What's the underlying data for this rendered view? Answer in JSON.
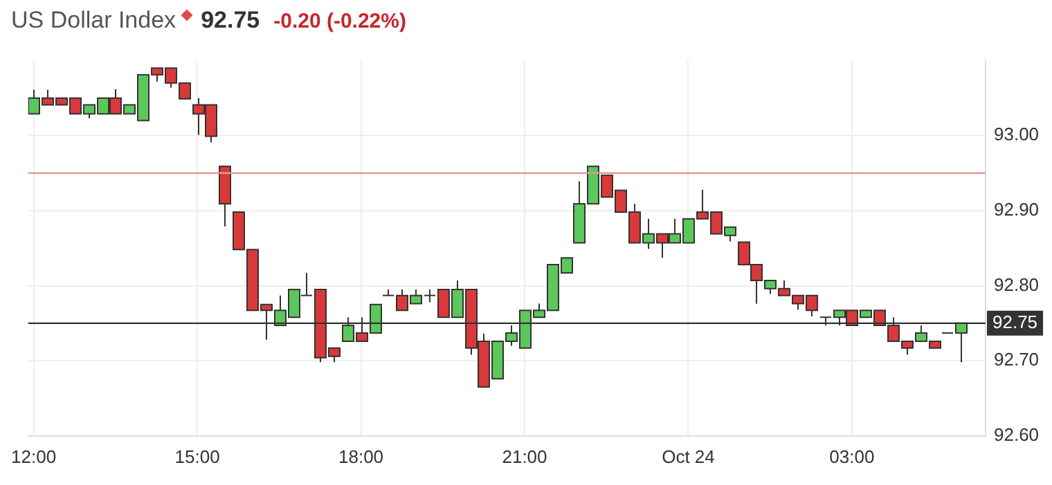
{
  "chart_data": {
    "type": "candlestick",
    "title": "US Dollar Index",
    "annotations": [
      "92.75",
      "-0.20 (-0.22%)"
    ],
    "x": [
      "--10-23T12:00",
      "--10-23T12:15",
      "--10-23T12:30",
      "--10-23T12:45",
      "--10-23T13:00",
      "--10-23T13:15",
      "--10-23T13:30",
      "--10-23T13:45",
      "--10-23T14:00",
      "--10-23T14:15",
      "--10-23T14:30",
      "--10-23T14:45",
      "--10-23T15:00",
      "--10-23T15:15",
      "--10-23T15:30",
      "--10-23T15:45",
      "--10-23T16:00",
      "--10-23T16:15",
      "--10-23T16:30",
      "--10-23T16:45",
      "--10-23T17:00",
      "--10-23T17:15",
      "--10-23T17:30",
      "--10-23T17:45",
      "--10-23T18:00",
      "--10-23T18:15",
      "--10-23T18:30",
      "--10-23T18:45",
      "--10-23T19:00",
      "--10-23T19:15",
      "--10-23T19:30",
      "--10-23T19:45",
      "--10-23T20:00",
      "--10-23T20:15",
      "--10-23T20:30",
      "--10-23T20:45",
      "--10-23T21:00",
      "--10-23T21:15",
      "--10-23T21:30",
      "--10-23T21:45",
      "--10-23T22:00",
      "--10-23T22:15",
      "--10-23T22:30",
      "--10-23T22:45",
      "--10-23T23:00",
      "--10-23T23:15",
      "--10-23T23:30",
      "--10-23T23:45",
      "--10-24T00:00",
      "--10-24T00:15",
      "--10-24T00:30",
      "--10-24T00:45",
      "--10-24T01:00",
      "--10-24T01:15",
      "--10-24T01:30",
      "--10-24T01:45",
      "--10-24T02:00",
      "--10-24T02:15",
      "--10-24T02:30",
      "--10-24T02:45",
      "--10-24T03:00",
      "--10-24T03:15",
      "--10-24T03:30",
      "--10-24T03:45",
      "--10-24T04:00",
      "--10-24T04:15",
      "--10-24T04:30",
      "--10-24T04:45",
      "--10-24T05:00"
    ],
    "ohlc": [
      [
        93.029,
        93.061,
        93.029,
        93.05
      ],
      [
        93.05,
        93.061,
        93.041,
        93.041
      ],
      [
        93.05,
        93.05,
        93.041,
        93.041
      ],
      [
        93.05,
        93.05,
        93.029,
        93.029
      ],
      [
        93.029,
        93.041,
        93.023,
        93.041
      ],
      [
        93.029,
        93.05,
        93.029,
        93.05
      ],
      [
        93.05,
        93.062,
        93.029,
        93.029
      ],
      [
        93.029,
        93.041,
        93.029,
        93.041
      ],
      [
        93.02,
        93.081,
        93.02,
        93.081
      ],
      [
        93.09,
        93.09,
        93.072,
        93.081
      ],
      [
        93.09,
        93.09,
        93.064,
        93.07
      ],
      [
        93.07,
        93.07,
        93.049,
        93.049
      ],
      [
        93.041,
        93.05,
        93.001,
        93.029
      ],
      [
        93.041,
        93.041,
        92.991,
        92.999
      ],
      [
        92.959,
        92.959,
        92.879,
        92.909
      ],
      [
        92.898,
        92.898,
        92.848,
        92.848
      ],
      [
        92.848,
        92.848,
        92.767,
        92.767
      ],
      [
        92.775,
        92.775,
        92.728,
        92.767
      ],
      [
        92.747,
        92.787,
        92.747,
        92.767
      ],
      [
        92.758,
        92.795,
        92.758,
        92.795
      ],
      [
        92.787,
        92.817,
        92.787,
        92.787
      ],
      [
        92.795,
        92.795,
        92.698,
        92.704
      ],
      [
        92.717,
        92.717,
        92.698,
        92.706
      ],
      [
        92.726,
        92.758,
        92.726,
        92.747
      ],
      [
        92.737,
        92.758,
        92.726,
        92.726
      ],
      [
        92.737,
        92.775,
        92.737,
        92.775
      ],
      [
        92.787,
        92.795,
        92.787,
        92.787
      ],
      [
        92.787,
        92.795,
        92.767,
        92.767
      ],
      [
        92.776,
        92.795,
        92.776,
        92.787
      ],
      [
        92.787,
        92.795,
        92.778,
        92.787
      ],
      [
        92.795,
        92.795,
        92.758,
        92.758
      ],
      [
        92.758,
        92.807,
        92.758,
        92.795
      ],
      [
        92.795,
        92.795,
        92.708,
        92.717
      ],
      [
        92.726,
        92.736,
        92.665,
        92.665
      ],
      [
        92.676,
        92.726,
        92.676,
        92.726
      ],
      [
        92.726,
        92.747,
        92.72,
        92.737
      ],
      [
        92.717,
        92.767,
        92.717,
        92.767
      ],
      [
        92.758,
        92.776,
        92.758,
        92.767
      ],
      [
        92.767,
        92.828,
        92.767,
        92.828
      ],
      [
        92.817,
        92.837,
        92.817,
        92.837
      ],
      [
        92.857,
        92.939,
        92.857,
        92.909
      ],
      [
        92.909,
        92.959,
        92.909,
        92.959
      ],
      [
        92.947,
        92.947,
        92.918,
        92.918
      ],
      [
        92.927,
        92.927,
        92.898,
        92.898
      ],
      [
        92.898,
        92.909,
        92.857,
        92.857
      ],
      [
        92.857,
        92.889,
        92.849,
        92.869
      ],
      [
        92.869,
        92.869,
        92.837,
        92.857
      ],
      [
        92.857,
        92.889,
        92.857,
        92.869
      ],
      [
        92.857,
        92.889,
        92.857,
        92.889
      ],
      [
        92.898,
        92.928,
        92.889,
        92.889
      ],
      [
        92.898,
        92.898,
        92.869,
        92.869
      ],
      [
        92.867,
        92.878,
        92.859,
        92.878
      ],
      [
        92.858,
        92.858,
        92.828,
        92.828
      ],
      [
        92.828,
        92.828,
        92.776,
        92.807
      ],
      [
        92.796,
        92.807,
        92.789,
        92.807
      ],
      [
        92.796,
        92.807,
        92.787,
        92.787
      ],
      [
        92.787,
        92.787,
        92.768,
        92.776
      ],
      [
        92.787,
        92.787,
        92.759,
        92.767
      ],
      [
        92.758,
        92.758,
        92.747,
        92.758
      ],
      [
        92.758,
        92.767,
        92.747,
        92.767
      ],
      [
        92.767,
        92.767,
        92.747,
        92.747
      ],
      [
        92.758,
        92.767,
        92.758,
        92.767
      ],
      [
        92.767,
        92.767,
        92.747,
        92.747
      ],
      [
        92.747,
        92.758,
        92.726,
        92.726
      ],
      [
        92.726,
        92.726,
        92.708,
        92.717
      ],
      [
        92.726,
        92.747,
        92.726,
        92.737
      ],
      [
        92.726,
        92.726,
        92.717,
        92.717
      ],
      [
        92.737,
        92.737,
        92.737,
        92.737
      ],
      [
        92.737,
        92.75,
        92.698,
        92.75
      ]
    ],
    "colors": [
      "#5cc85c",
      "#d9393b",
      "#d9393b",
      "#d9393b",
      "#5cc85c",
      "#5cc85c",
      "#d9393b",
      "#5cc85c",
      "#5cc85c",
      "#d9393b",
      "#d9393b",
      "#d9393b",
      "#d9393b",
      "#d9393b",
      "#d9393b",
      "#d9393b",
      "#d9393b",
      "#d9393b",
      "#5cc85c",
      "#5cc85c",
      "#333333",
      "#d9393b",
      "#d9393b",
      "#5cc85c",
      "#d9393b",
      "#5cc85c",
      "#333333",
      "#d9393b",
      "#5cc85c",
      "#333333",
      "#d9393b",
      "#5cc85c",
      "#d9393b",
      "#d9393b",
      "#5cc85c",
      "#5cc85c",
      "#5cc85c",
      "#5cc85c",
      "#5cc85c",
      "#5cc85c",
      "#5cc85c",
      "#5cc85c",
      "#d9393b",
      "#d9393b",
      "#d9393b",
      "#5cc85c",
      "#d9393b",
      "#5cc85c",
      "#5cc85c",
      "#d9393b",
      "#d9393b",
      "#5cc85c",
      "#d9393b",
      "#d9393b",
      "#5cc85c",
      "#d9393b",
      "#d9393b",
      "#d9393b",
      "#333333",
      "#5cc85c",
      "#d9393b",
      "#5cc85c",
      "#d9393b",
      "#d9393b",
      "#d9393b",
      "#5cc85c",
      "#d9393b",
      "#333333",
      "#5cc85c"
    ],
    "xlim": [
      "--10-23T11:54",
      "--10-24T05:27"
    ],
    "xticks": [
      {
        "value": "--10-23T12:00",
        "label": "12:00"
      },
      {
        "value": "--10-23T15:00",
        "label": "15:00"
      },
      {
        "value": "--10-23T18:00",
        "label": "18:00"
      },
      {
        "value": "--10-23T21:00",
        "label": "21:00"
      },
      {
        "value": "--10-24",
        "label": "Oct 24"
      },
      {
        "value": "--10-24T03:00",
        "label": "03:00"
      }
    ],
    "ylim": [
      92.6,
      93.1
    ],
    "yticks": [
      {
        "value": 92.6,
        "label": "92.60"
      },
      {
        "value": 92.7,
        "label": "92.70"
      },
      {
        "value": 92.8,
        "label": "92.80"
      },
      {
        "value": 92.9,
        "label": "92.90"
      },
      {
        "value": 93.0,
        "label": "93.00"
      }
    ],
    "grid": true,
    "ref_lines": [
      {
        "axis": "y",
        "value": 92.95,
        "color": "#e39a9a"
      },
      {
        "axis": "y",
        "value": 92.75,
        "label": "92.75",
        "color": "#333333"
      }
    ]
  }
}
